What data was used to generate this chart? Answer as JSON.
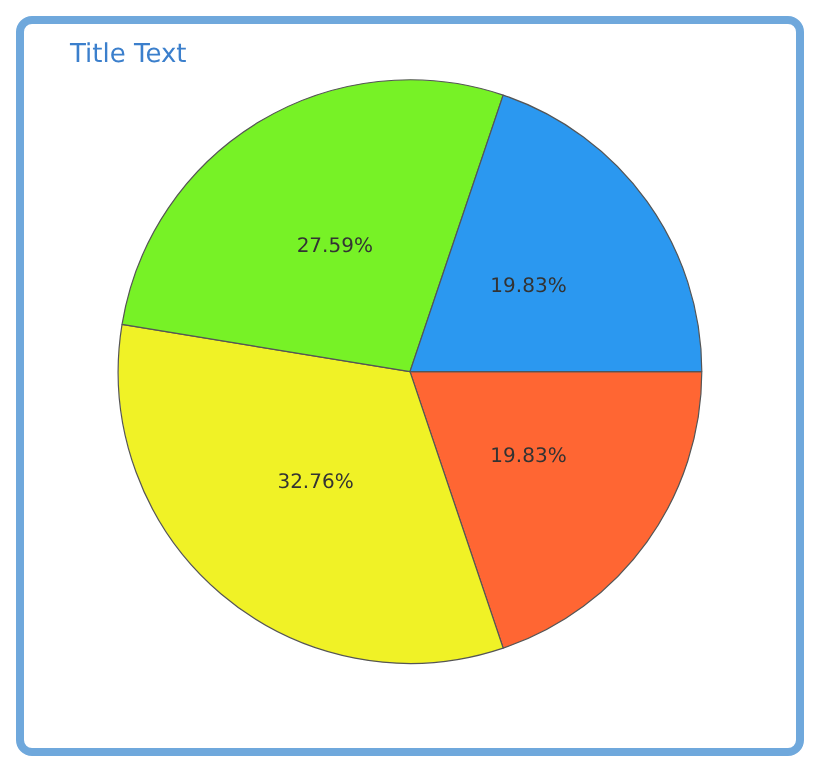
{
  "chart_data": {
    "type": "pie",
    "title": "Title Text",
    "categories": [
      null,
      null,
      null,
      null
    ],
    "values": [
      19.83,
      32.76,
      27.59,
      19.83
    ],
    "colors": [
      "#ff6633",
      "#f0f226",
      "#77f226",
      "#2b98f0"
    ],
    "value_labels": [
      "19.83%",
      "32.76%",
      "27.59%",
      "19.83%"
    ],
    "legend": false
  }
}
